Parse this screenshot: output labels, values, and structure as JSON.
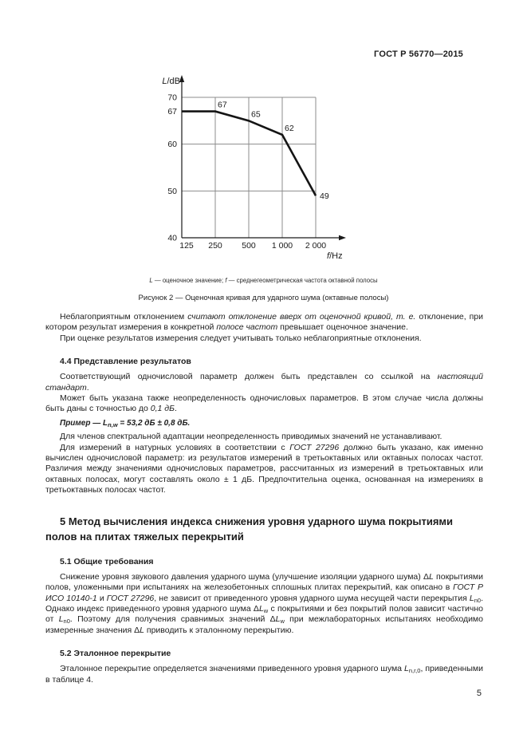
{
  "page": {
    "header": "ГОСТ Р 56770—2015",
    "page_number": "5"
  },
  "figure": {
    "legend_segments": [
      {
        "t": "L",
        "s": "i"
      },
      {
        "t": " — оценочное значение; "
      },
      {
        "t": "f",
        "s": "i"
      },
      {
        "t": " — среднегеометрическая частота октавной полосы"
      }
    ],
    "caption": "Рисунок 2 — Оценочная кривая для ударного шума (октавные полосы)"
  },
  "chart_data": {
    "type": "line",
    "title": "Оценочная кривая для ударного шума (октавные полосы)",
    "x": [
      125,
      250,
      500,
      1000,
      2000
    ],
    "x_tick_labels": [
      "125",
      "250",
      "500",
      "1 000",
      "2 000"
    ],
    "values": [
      67,
      67,
      65,
      62,
      49
    ],
    "point_labels": [
      "",
      "67",
      "65",
      "62",
      "49"
    ],
    "xlabel": "f/Hz",
    "ylabel": "L/dB",
    "y_ticks": [
      70,
      67,
      60,
      50,
      40
    ],
    "y_gridlines": [
      70,
      60,
      50
    ],
    "ylim": [
      40,
      70
    ],
    "x_axis": "log-octave",
    "grid": true,
    "line_color": "#141414",
    "grid_color": "#8c8c8c"
  },
  "content": {
    "blocks": [
      {
        "type": "p",
        "name": "paragraph-unfavorable-deviation",
        "segments": [
          {
            "t": "Неблагоприятным отклонением "
          },
          {
            "t": "считают отклонение вверх от оценочной кривой, т. е.",
            "s": "i"
          },
          {
            "t": " отклонение, при котором результат измерения в конкретной "
          },
          {
            "t": "полосе частот",
            "s": "i"
          },
          {
            "t": " превышает оценочное значение."
          }
        ]
      },
      {
        "type": "p",
        "name": "paragraph-only-unfavorable",
        "segments": [
          {
            "t": "При оценке результатов измерения следует учитывать только неблагоприятные отклонения."
          }
        ]
      },
      {
        "type": "h3",
        "name": "heading-4-4",
        "segments": [
          {
            "t": "4.4 Представление результатов"
          }
        ]
      },
      {
        "type": "p",
        "name": "paragraph-single-number",
        "segments": [
          {
            "t": "Соответствующий одночисловой параметр должен быть представлен со ссылкой на "
          },
          {
            "t": "настоящий стандарт",
            "s": "i"
          },
          {
            "t": "."
          }
        ]
      },
      {
        "type": "p",
        "name": "paragraph-uncertainty",
        "segments": [
          {
            "t": "Может быть указана также неопределенность одночисловых параметров. В этом случае числа должны быть даны с точностью до "
          },
          {
            "t": "0,1 дБ",
            "s": "i"
          },
          {
            "t": "."
          }
        ]
      },
      {
        "type": "example",
        "name": "example-line",
        "segments": [
          {
            "t": "Пример — ",
            "s": "bi"
          },
          {
            "t": "L",
            "s": "bi"
          },
          {
            "t": "n,w",
            "s": "bisub"
          },
          {
            "t": " = 53,2 дБ ± 0,8 дБ.",
            "s": "bi"
          }
        ]
      },
      {
        "type": "p",
        "name": "paragraph-spectral-adaptation",
        "segments": [
          {
            "t": "Для членов спектральной адаптации неопределенность приводимых значений не устанавливают."
          }
        ]
      },
      {
        "type": "p",
        "name": "paragraph-field-measurements",
        "segments": [
          {
            "t": "Для измерений в натурных условиях в соответствии с "
          },
          {
            "t": "ГОСТ 27296",
            "s": "i"
          },
          {
            "t": " должно быть указано, как именно вычислен одночисловой параметр: из результатов измерений в третьоктавных или октавных полосах частот. Различия между значениями одночисловых параметров, рассчитанных из измерений в третьоктавных или октавных полосах, могут составлять около ± 1 дБ. Предпочтительна оценка, основанная на измерениях в третьоктавных полосах частот."
          }
        ]
      },
      {
        "type": "h1",
        "name": "heading-section-5",
        "segments": [
          {
            "t": "5 Метод вычисления индекса снижения уровня ударного шума покрытиями полов на плитах тяжелых перекрытий"
          }
        ]
      },
      {
        "type": "h3",
        "name": "heading-5-1",
        "segments": [
          {
            "t": "5.1 Общие требования"
          }
        ]
      },
      {
        "type": "p",
        "name": "paragraph-5-1-body",
        "segments": [
          {
            "t": "Снижение уровня звукового давления ударного шума (улучшение изоляции ударного шума) Δ"
          },
          {
            "t": "L",
            "s": "i"
          },
          {
            "t": " покрытиями полов, уложенными при испытаниях на железобетонных сплошных плитах перекрытий, как описано в "
          },
          {
            "t": "ГОСТ Р ИСО 10140-1",
            "s": "i"
          },
          {
            "t": " и "
          },
          {
            "t": "ГОСТ 27296",
            "s": "i"
          },
          {
            "t": ", не зависит от приведенного уровня ударного шума несущей части перекрытия "
          },
          {
            "t": "L",
            "s": "i"
          },
          {
            "t": "n0",
            "s": "sub"
          },
          {
            "t": ". Однако индекс приведенного уровня ударного шума Δ"
          },
          {
            "t": "L",
            "s": "i"
          },
          {
            "t": "w",
            "s": "sub"
          },
          {
            "t": " с покрытиями и без покрытий полов зависит частично от "
          },
          {
            "t": "L",
            "s": "i"
          },
          {
            "t": "n0",
            "s": "sub"
          },
          {
            "t": ". Поэтому для получения сравнимых значений Δ"
          },
          {
            "t": "L",
            "s": "i"
          },
          {
            "t": "w",
            "s": "sub"
          },
          {
            "t": " при межлабораторных испытаниях необходимо измеренные значения Δ"
          },
          {
            "t": "L",
            "s": "i"
          },
          {
            "t": " приводить к эталонному перекрытию."
          }
        ]
      },
      {
        "type": "h3",
        "name": "heading-5-2",
        "segments": [
          {
            "t": "5.2 Эталонное перекрытие"
          }
        ]
      },
      {
        "type": "p",
        "name": "paragraph-5-2-body",
        "segments": [
          {
            "t": "Эталонное перекрытие определяется значениями приведенного уровня ударного шума "
          },
          {
            "t": "L",
            "s": "i"
          },
          {
            "t": "n,r,0",
            "s": "sub"
          },
          {
            "t": ", приведенными в таблице 4."
          }
        ]
      }
    ]
  }
}
